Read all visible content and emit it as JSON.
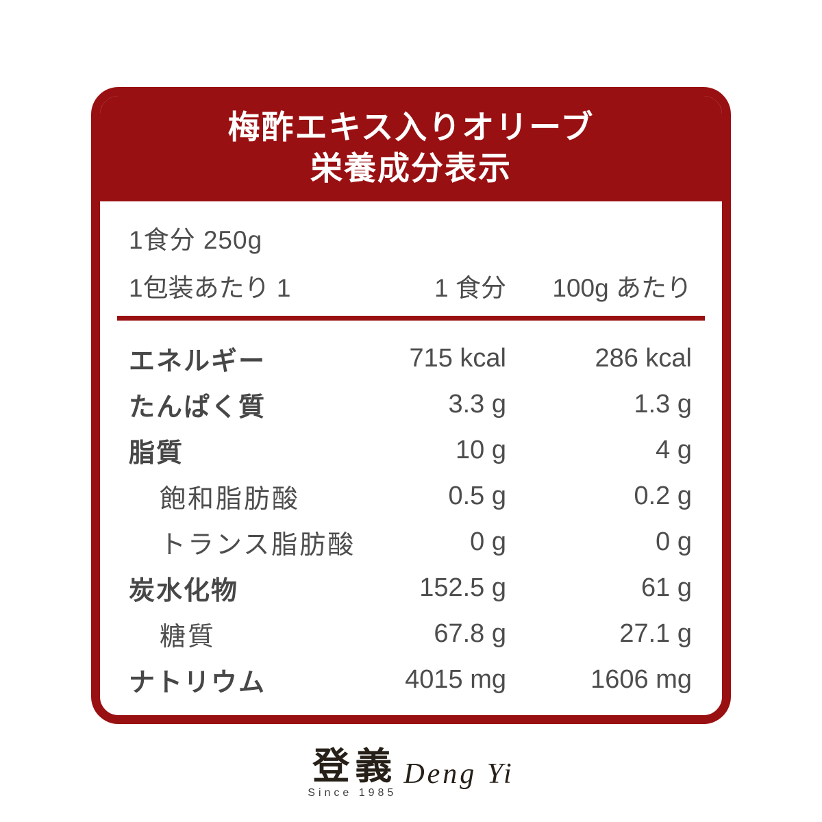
{
  "colors": {
    "accent": "#991012",
    "body_text": "#4d4d4d",
    "title_text": "#ffffff",
    "logo_text": "#262019"
  },
  "header": {
    "title_line1": "梅酢エキス入りオリーブ",
    "title_line2": "栄養成分表示"
  },
  "serving_info": {
    "serving_size": "1食分 250g",
    "servings_per_package": "1包装あたり 1"
  },
  "table": {
    "column_headers": {
      "per_serving": "1 食分",
      "per_100g": "100g あたり"
    },
    "rows": [
      {
        "label": "エネルギー",
        "bold": true,
        "indent": false,
        "per_serving": "715 kcal",
        "per_100g": "286 kcal"
      },
      {
        "label": "たんぱく質",
        "bold": true,
        "indent": false,
        "per_serving": "3.3 g",
        "per_100g": "1.3 g"
      },
      {
        "label": "脂質",
        "bold": true,
        "indent": false,
        "per_serving": "10 g",
        "per_100g": "4 g"
      },
      {
        "label": "飽和脂肪酸",
        "bold": false,
        "indent": true,
        "per_serving": "0.5 g",
        "per_100g": "0.2 g"
      },
      {
        "label": "トランス脂肪酸",
        "bold": false,
        "indent": true,
        "per_serving": "0 g",
        "per_100g": "0 g"
      },
      {
        "label": "炭水化物",
        "bold": true,
        "indent": false,
        "per_serving": "152.5 g",
        "per_100g": "61 g"
      },
      {
        "label": "糖質",
        "bold": false,
        "indent": true,
        "per_serving": "67.8 g",
        "per_100g": "27.1 g"
      },
      {
        "label": "ナトリウム",
        "bold": true,
        "indent": false,
        "per_serving": "4015 mg",
        "per_100g": "1606 mg"
      }
    ]
  },
  "footer_logo": {
    "kanji": "登義",
    "romaji": "Deng Yi",
    "since": "Since 1985"
  }
}
